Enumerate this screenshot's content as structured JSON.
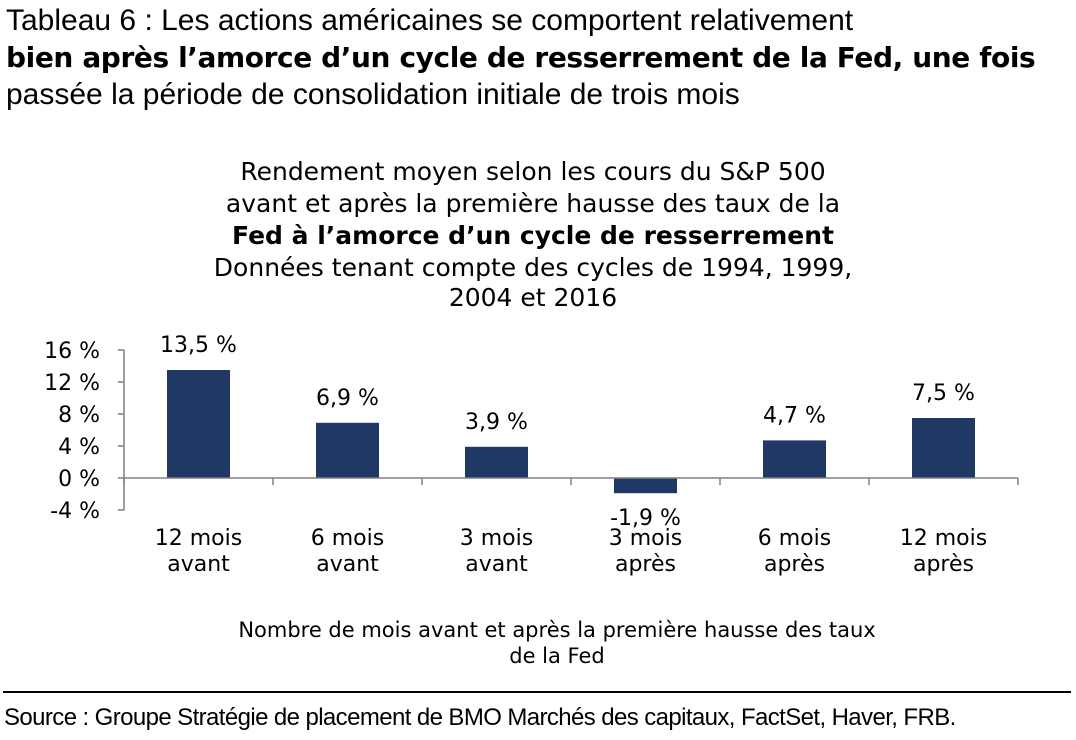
{
  "figure": {
    "title_line1": "Tableau 6 : Les actions américaines se comportent relativement",
    "title_line2": "bien après l’amorce d’un cycle de resserrement de la Fed, une fois",
    "title_line3": "passée la période de consolidation initiale de trois mois",
    "source": "Source : Groupe Stratégie de placement de BMO Marchés des capitaux, FactSet, Haver, FRB."
  },
  "chart_data": {
    "type": "bar",
    "title_lines": [
      "Rendement moyen selon les cours du S&P 500",
      "avant et après la première hausse des taux de la",
      "Fed à l’amorce d’un cycle de resserrement"
    ],
    "subtitle_lines": [
      "Données tenant compte des cycles de 1994, 1999,",
      "2004 et 2016"
    ],
    "categories": [
      [
        "12 mois",
        "avant"
      ],
      [
        "6 mois",
        "avant"
      ],
      [
        "3 mois",
        "avant"
      ],
      [
        "3 mois",
        "après"
      ],
      [
        "6 mois",
        "après"
      ],
      [
        "12 mois",
        "après"
      ]
    ],
    "values": [
      13.5,
      6.9,
      3.9,
      -1.9,
      4.7,
      7.5
    ],
    "data_labels": [
      "13,5 %",
      "6,9 %",
      "3,9 %",
      "-1,9 %",
      "4,7 %",
      "7,5 %"
    ],
    "ylim": [
      -4,
      16
    ],
    "yticks": [
      -4,
      0,
      4,
      8,
      12,
      16
    ],
    "ytick_labels": [
      "-4 %",
      "0 %",
      "4 %",
      "8 %",
      "12 %",
      "16 %"
    ],
    "xlabel_lines": [
      "Nombre de mois avant et après la première hausse des taux",
      "de la Fed"
    ],
    "ylabel": "",
    "bar_color": "#1f3864",
    "grid": false,
    "legend": "none"
  }
}
